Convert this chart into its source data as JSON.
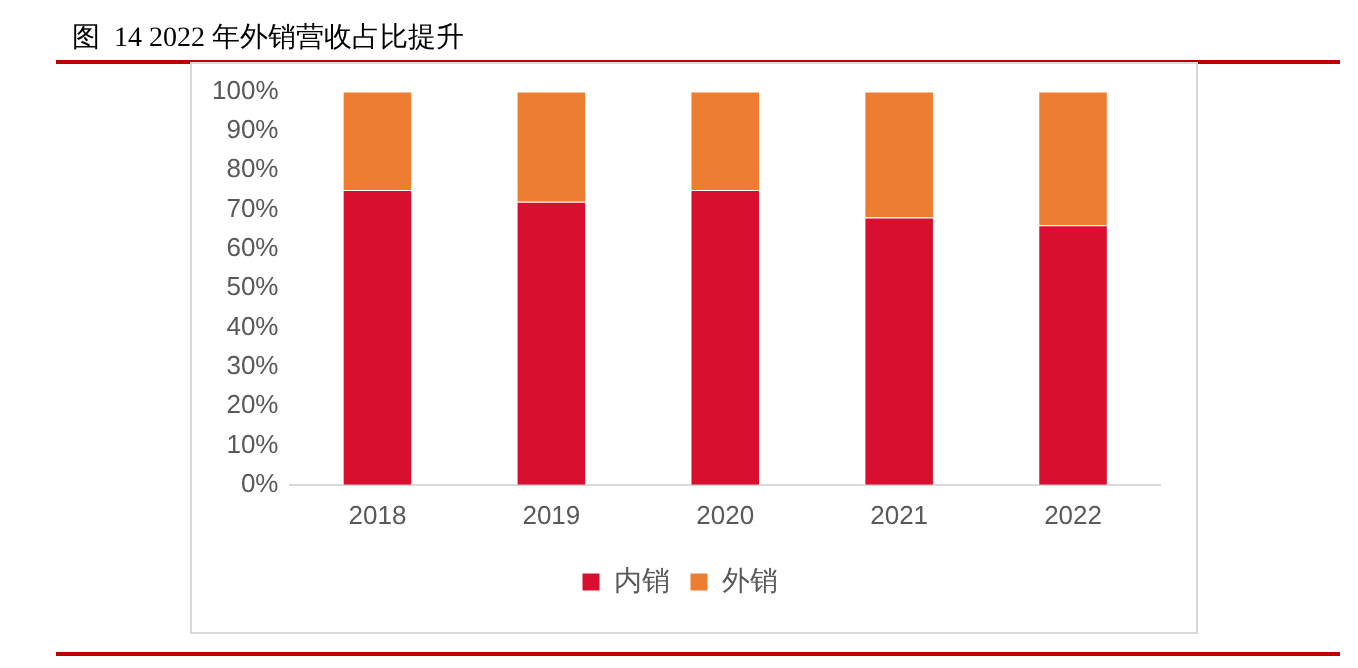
{
  "chart_data": {
    "type": "bar",
    "title": "图  14 2022 年外销营收占比提升",
    "categories": [
      "2018",
      "2019",
      "2020",
      "2021",
      "2022"
    ],
    "series": [
      {
        "name": "内销",
        "color": "#d90f2f",
        "values": [
          75,
          72,
          75,
          68,
          66
        ]
      },
      {
        "name": "外销",
        "color": "#ed7d31",
        "values": [
          25,
          28,
          25,
          32,
          34
        ]
      }
    ],
    "stacked": true,
    "ylim": [
      0,
      100
    ],
    "yticks": [
      {
        "value": 0,
        "label": "0%"
      },
      {
        "value": 10,
        "label": "10%"
      },
      {
        "value": 20,
        "label": "20%"
      },
      {
        "value": 30,
        "label": "30%"
      },
      {
        "value": 40,
        "label": "40%"
      },
      {
        "value": 50,
        "label": "50%"
      },
      {
        "value": 60,
        "label": "60%"
      },
      {
        "value": 70,
        "label": "70%"
      },
      {
        "value": 80,
        "label": "80%"
      },
      {
        "value": 90,
        "label": "90%"
      },
      {
        "value": 100,
        "label": "100%"
      }
    ],
    "grid": false,
    "legend": "bottom"
  }
}
